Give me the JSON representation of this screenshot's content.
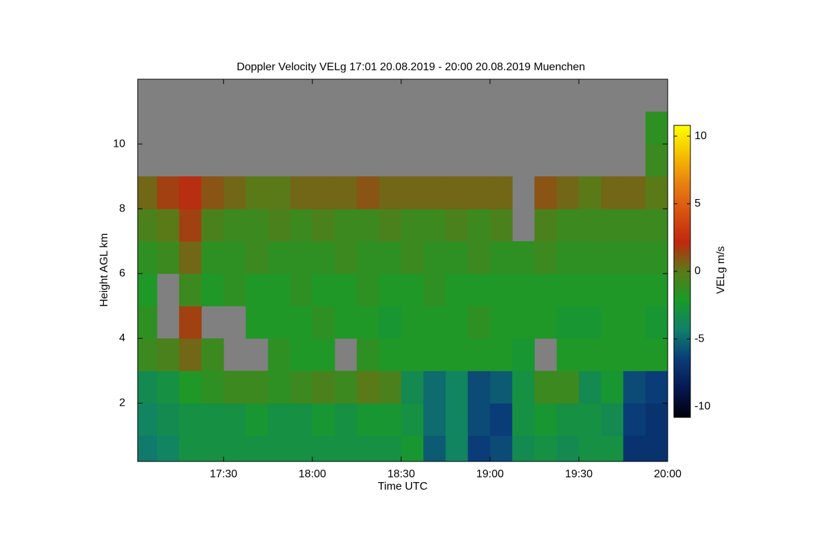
{
  "chart_data": {
    "type": "heatmap",
    "title": "Doppler Velocity VELg   17:01 20.08.2019 - 20:00 20.08.2019 Muenchen",
    "xlabel": "Time UTC",
    "ylabel": "Height AGL km",
    "colorbar_label": "VELg m/s",
    "xlim": [
      17.0167,
      20
    ],
    "ylim": [
      0.2,
      12
    ],
    "xticks": [
      {
        "value": 17.5,
        "label": "17:30"
      },
      {
        "value": 18,
        "label": "18:00"
      },
      {
        "value": 18.5,
        "label": "18:30"
      },
      {
        "value": 19,
        "label": "19:00"
      },
      {
        "value": 19.5,
        "label": "19:30"
      },
      {
        "value": 20,
        "label": "20:00"
      }
    ],
    "yticks": [
      2,
      4,
      6,
      8,
      10
    ],
    "clim": [
      -10.8,
      10.8
    ],
    "cticks": [
      -10,
      -5,
      0,
      5,
      10
    ],
    "colormap": [
      "#00000a",
      "#061850",
      "#0a3c78",
      "#10806a",
      "#1a9a28",
      "#5a7a18",
      "#c02810",
      "#d85010",
      "#e88010",
      "#f4c000",
      "#ffff00"
    ],
    "nodata_color": "#808080",
    "x_bins": [
      17,
      17.125,
      17.25,
      17.375,
      17.5,
      17.625,
      17.75,
      17.875,
      18,
      18.125,
      18.25,
      18.375,
      18.5,
      18.625,
      18.75,
      18.875,
      19,
      19.125,
      19.25,
      19.375,
      19.5,
      19.625,
      19.75,
      19.875,
      20
    ],
    "y_bins": [
      0,
      1,
      2,
      3,
      4,
      5,
      6,
      7,
      8,
      9,
      10,
      11,
      12
    ],
    "values": [
      [
        -4.5,
        -4,
        -3,
        -3,
        -3,
        -3,
        -3,
        -3,
        -3,
        -3,
        -3,
        -3,
        -2.5,
        -5.5,
        -4,
        -6.5,
        -6,
        -3.5,
        -3,
        -3.5,
        -3,
        -3,
        -7,
        -7
      ],
      [
        -4,
        -3.5,
        -3,
        -3,
        -3,
        -2.5,
        -3,
        -3,
        -2.5,
        -3,
        -2.5,
        -2.5,
        -3,
        -5,
        -4,
        -6,
        -6.5,
        -3,
        -2.5,
        -3,
        -3,
        -3.5,
        -6.5,
        -7
      ],
      [
        -3.5,
        -3,
        -2,
        -1.5,
        -1,
        -1,
        -1.5,
        -1,
        -0.5,
        -1,
        0,
        -0.5,
        -3.5,
        -5,
        -4,
        -6,
        -5.5,
        -3,
        -1,
        -1,
        -3.5,
        -2.5,
        -6,
        -6.5
      ],
      [
        -1,
        -0.5,
        0.5,
        -1,
        null,
        null,
        -1.5,
        -2,
        -2,
        null,
        -1.5,
        -2,
        -2,
        -2,
        -2,
        -2,
        -2,
        -2.5,
        null,
        -2,
        -2,
        -2,
        -2,
        -2
      ],
      [
        -1.5,
        null,
        1.5,
        null,
        null,
        -2,
        -2,
        -2,
        -1.5,
        -2,
        -2,
        -2.5,
        -2,
        -2,
        -2,
        -1.5,
        -2,
        -2,
        -2,
        -2.5,
        -2.5,
        -2,
        -2,
        -2.5
      ],
      [
        -2,
        null,
        -1,
        -2,
        -1.5,
        -2,
        -2,
        -1.5,
        -2,
        -2,
        -1.5,
        -2,
        -2,
        -1.5,
        -2,
        -2,
        -2,
        -2,
        -2,
        -2,
        -2,
        -2,
        -2,
        -2
      ],
      [
        -1.5,
        -1,
        0.5,
        -1.5,
        -1.5,
        -1,
        -1.5,
        -1.5,
        -1.5,
        -1,
        -1.5,
        -1.5,
        -1,
        -1.5,
        -1.5,
        -1,
        -1.5,
        -1.5,
        -1,
        -1.5,
        -1.5,
        -1.5,
        -1.5,
        -1.5
      ],
      [
        -0.5,
        0,
        1.5,
        -0.5,
        -1,
        -1,
        -0.5,
        -1,
        -0.5,
        -1,
        -1,
        -0.5,
        -1,
        -1,
        -0.5,
        -1,
        -0.5,
        null,
        -0.5,
        -1,
        -1,
        -1,
        -1,
        -1
      ],
      [
        0.5,
        1.5,
        2,
        1,
        0.5,
        0,
        0,
        0.5,
        0.5,
        0.5,
        1,
        0.5,
        0.5,
        0.5,
        0.5,
        0.5,
        0.5,
        null,
        1,
        0.5,
        0,
        0.5,
        0.5,
        0
      ],
      [
        null,
        null,
        null,
        null,
        null,
        null,
        null,
        null,
        null,
        null,
        null,
        null,
        null,
        null,
        null,
        null,
        null,
        null,
        null,
        null,
        null,
        null,
        null,
        -1
      ],
      [
        null,
        null,
        null,
        null,
        null,
        null,
        null,
        null,
        null,
        null,
        null,
        null,
        null,
        null,
        null,
        null,
        null,
        null,
        null,
        null,
        null,
        null,
        null,
        -1.5
      ],
      [
        null,
        null,
        null,
        null,
        null,
        null,
        null,
        null,
        null,
        null,
        null,
        null,
        null,
        null,
        null,
        null,
        null,
        null,
        null,
        null,
        null,
        null,
        null,
        null
      ]
    ]
  }
}
